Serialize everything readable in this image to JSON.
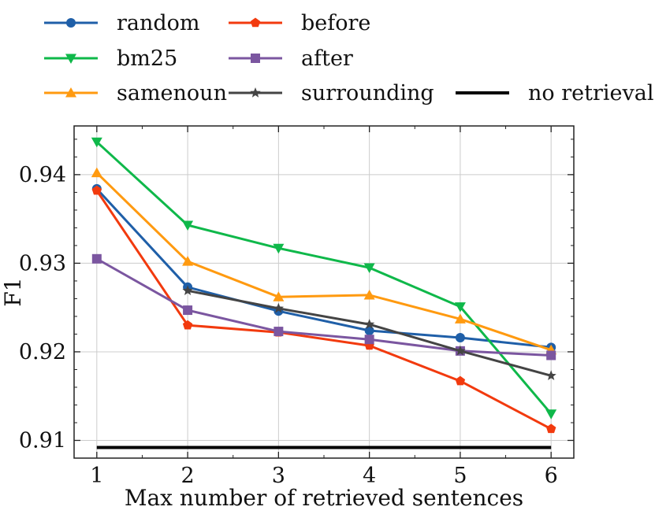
{
  "chart_data": {
    "type": "line",
    "title": "",
    "xlabel": "Max number of retrieved sentences",
    "ylabel": "F1",
    "x": [
      1,
      2,
      3,
      4,
      5,
      6
    ],
    "xticks": [
      "1",
      "2",
      "3",
      "4",
      "5",
      "6"
    ],
    "yticks": [
      "0.91",
      "0.92",
      "0.93",
      "0.94"
    ],
    "xlim": [
      0.75,
      6.25
    ],
    "ylim": [
      0.908,
      0.9455
    ],
    "grid": true,
    "legend_position": "top",
    "series": [
      {
        "name": "random",
        "color": "#1f5fa8",
        "marker": "circle",
        "x": [
          1,
          2,
          3,
          4,
          5,
          6
        ],
        "values": [
          0.9384,
          0.9273,
          0.9246,
          0.9224,
          0.9216,
          0.9205
        ]
      },
      {
        "name": "bm25",
        "color": "#0fb84a",
        "marker": "triangle-down",
        "x": [
          1,
          2,
          3,
          4,
          5,
          6
        ],
        "values": [
          0.9437,
          0.9343,
          0.9317,
          0.9295,
          0.9251,
          0.913
        ]
      },
      {
        "name": "samenoun",
        "color": "#ff9a10",
        "marker": "triangle-up",
        "x": [
          1,
          2,
          3,
          4,
          5,
          6
        ],
        "values": [
          0.9402,
          0.9302,
          0.9262,
          0.9264,
          0.9237,
          0.9202
        ]
      },
      {
        "name": "before",
        "color": "#f23a0e",
        "marker": "pentagon",
        "x": [
          1,
          2,
          3,
          4,
          5,
          6
        ],
        "values": [
          0.9382,
          0.923,
          0.9222,
          0.9207,
          0.9167,
          0.9113
        ]
      },
      {
        "name": "after",
        "color": "#7b56a0",
        "marker": "square",
        "x": [
          1,
          2,
          3,
          4,
          5,
          6
        ],
        "values": [
          0.9305,
          0.9247,
          0.9223,
          0.9214,
          0.9201,
          0.9196
        ]
      },
      {
        "name": "surrounding",
        "color": "#444444",
        "marker": "star",
        "x": [
          2,
          3,
          4,
          5,
          6
        ],
        "values": [
          0.9269,
          0.9249,
          0.9231,
          0.9201,
          0.9173
        ]
      },
      {
        "name": "no retrieval",
        "color": "#000000",
        "marker": "none",
        "x": [
          1,
          6
        ],
        "values": [
          0.9092,
          0.9092
        ]
      }
    ]
  }
}
